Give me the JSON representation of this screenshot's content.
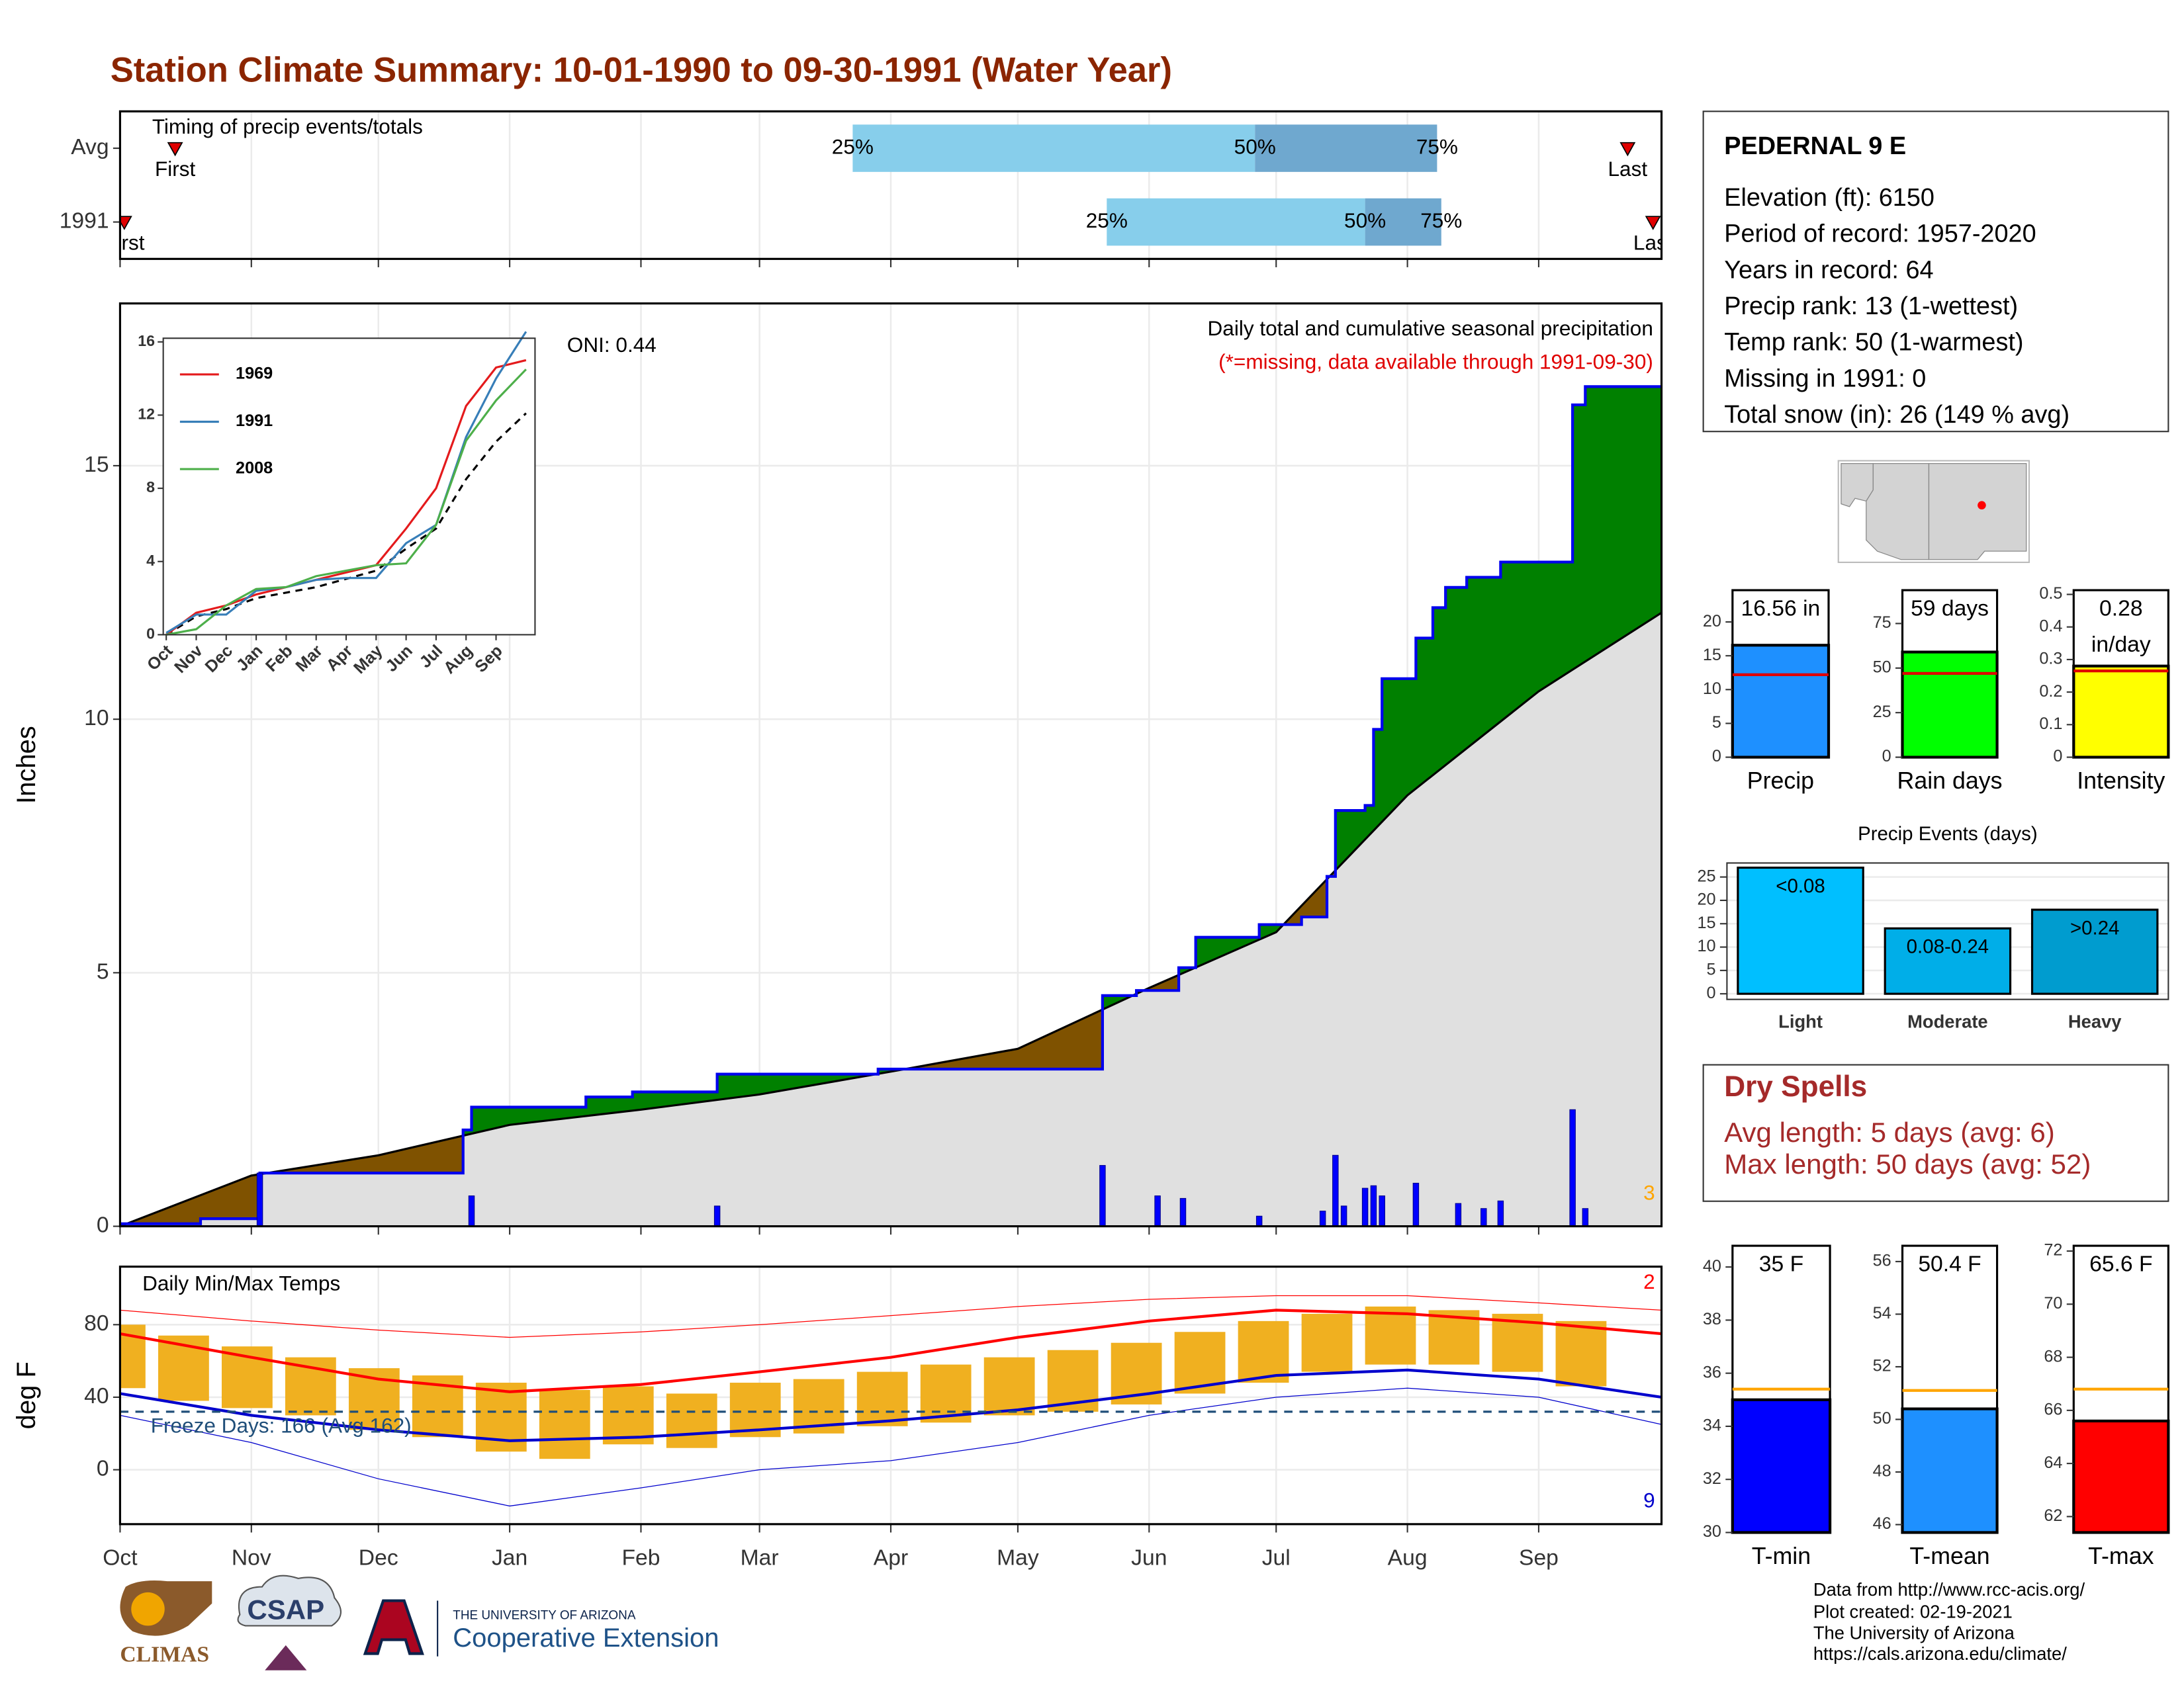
{
  "title": "Station Climate Summary: 10-01-1990 to 09-30-1991 (Water Year)",
  "chart_data": [
    {
      "type": "timing",
      "title": "Timing of precip events/totals",
      "categories": [
        "Avg",
        "1991"
      ],
      "rows": [
        {
          "first": 13,
          "q25": 173,
          "q50": 268,
          "q75": 311,
          "last": 356
        },
        {
          "first": 1,
          "q25": 233,
          "q50": 294,
          "q75": 312,
          "last": 362
        }
      ],
      "labels": {
        "first": "First",
        "last": "Last",
        "q25": "25%",
        "q50": "50%",
        "q75": "75%"
      },
      "colors": [
        "#87ceeb",
        "#6fa8cf"
      ],
      "marker_color": "#e00000",
      "xlim": [
        0,
        364
      ],
      "xticks": [
        0,
        31,
        61,
        92,
        123,
        151,
        182,
        212,
        243,
        273,
        304,
        335
      ],
      "grid": true
    },
    {
      "type": "cumulative",
      "title": "Daily total and cumulative seasonal precipitation",
      "subtitle": "(*=missing, data available through 1991-09-30)",
      "annotation": "ONI: 0.44",
      "corner_label": "3",
      "ylabel": "Inches",
      "series": [
        {
          "name": "1991",
          "color": "#0000ee",
          "x": [
            0,
            19,
            33,
            81,
            83,
            110,
            121,
            141,
            179,
            232,
            240,
            250,
            254,
            269,
            279,
            285,
            287,
            294,
            296,
            298,
            306,
            310,
            313,
            318,
            326,
            343,
            346,
            364
          ],
          "values": [
            0.05,
            0.15,
            1.05,
            1.9,
            2.35,
            2.55,
            2.65,
            3.0,
            3.1,
            4.55,
            4.65,
            5.1,
            5.7,
            5.95,
            6.1,
            6.9,
            8.2,
            8.3,
            9.8,
            10.8,
            11.6,
            12.2,
            12.6,
            12.8,
            13.1,
            16.2,
            16.56,
            16.56
          ]
        }
      ],
      "average": {
        "x": [
          0,
          31,
          61,
          92,
          123,
          151,
          182,
          212,
          243,
          273,
          304,
          335,
          364
        ],
        "values": [
          0,
          1.0,
          1.4,
          2.0,
          2.3,
          2.6,
          3.05,
          3.5,
          4.7,
          5.8,
          8.5,
          10.55,
          12.1
        ],
        "color": "#e0e0e0"
      },
      "above_color": "#008000",
      "below_color": "#7f5200",
      "daily": {
        "x": [
          33,
          83,
          141,
          232,
          245,
          251,
          269,
          284,
          287,
          289,
          294,
          296,
          298,
          306,
          316,
          322,
          326,
          343,
          346
        ],
        "values": [
          1.05,
          0.6,
          0.4,
          1.2,
          0.6,
          0.55,
          0.2,
          0.3,
          1.4,
          0.4,
          0.75,
          0.8,
          0.6,
          0.85,
          0.45,
          0.35,
          0.5,
          2.3,
          0.35
        ],
        "color": "#0000ff"
      },
      "xlim": [
        0,
        364
      ],
      "xticks": [
        0,
        31,
        61,
        92,
        123,
        151,
        182,
        212,
        243,
        273,
        304,
        335
      ],
      "ylim": [
        0,
        18.2
      ],
      "yticks": [
        0,
        5,
        10,
        15
      ],
      "grid": true
    },
    {
      "type": "line",
      "x": [
        0,
        1,
        2,
        3,
        4,
        5,
        6,
        7,
        8,
        9,
        10,
        11,
        12
      ],
      "series": [
        {
          "name": "1969",
          "color": "#e41a1c",
          "values": [
            0,
            1.2,
            1.6,
            2.2,
            2.6,
            3.0,
            3.4,
            3.8,
            5.8,
            8.0,
            12.5,
            14.6,
            15.0
          ]
        },
        {
          "name": "1991",
          "color": "#377eb8",
          "values": [
            0.1,
            1.1,
            1.1,
            2.4,
            2.6,
            3.0,
            3.1,
            3.1,
            5.0,
            6.0,
            10.8,
            14.0,
            16.56
          ]
        },
        {
          "name": "2008",
          "color": "#4daf4a",
          "values": [
            0,
            0.3,
            1.6,
            2.5,
            2.6,
            3.2,
            3.5,
            3.8,
            3.9,
            6.0,
            10.6,
            12.8,
            14.5
          ]
        }
      ],
      "average": {
        "values": [
          0,
          1.0,
          1.4,
          2.0,
          2.3,
          2.6,
          3.05,
          3.5,
          4.7,
          5.8,
          8.5,
          10.55,
          12.1
        ],
        "color": "#000000"
      },
      "xlim": [
        -0.1,
        12.3
      ],
      "xticks": [
        {
          "value": 0,
          "label": "Oct"
        },
        {
          "value": 1,
          "label": "Nov"
        },
        {
          "value": 2,
          "label": "Dec"
        },
        {
          "value": 3,
          "label": "Jan"
        },
        {
          "value": 4,
          "label": "Feb"
        },
        {
          "value": 5,
          "label": "Mar"
        },
        {
          "value": 6,
          "label": "Apr"
        },
        {
          "value": 7,
          "label": "May"
        },
        {
          "value": 8,
          "label": "Jun"
        },
        {
          "value": 9,
          "label": "Jul"
        },
        {
          "value": 10,
          "label": "Aug"
        },
        {
          "value": 11,
          "label": "Sep"
        }
      ],
      "ylim": [
        0,
        16.2
      ],
      "yticks": [
        0,
        4,
        8,
        12,
        16
      ]
    },
    {
      "type": "temperature",
      "title": "Daily Min/Max Temps",
      "ylabel": "deg F",
      "annotation": "Freeze Days: 166 (Avg 162)",
      "corner_labels": [
        "2",
        "9"
      ],
      "x": [
        0,
        15,
        30,
        45,
        60,
        75,
        90,
        105,
        120,
        135,
        150,
        165,
        180,
        195,
        210,
        225,
        240,
        255,
        270,
        285,
        300,
        315,
        330,
        345
      ],
      "high": [
        80,
        74,
        68,
        62,
        56,
        52,
        48,
        44,
        46,
        42,
        48,
        50,
        54,
        58,
        62,
        66,
        70,
        76,
        82,
        86,
        90,
        88,
        86,
        82
      ],
      "low": [
        45,
        38,
        34,
        30,
        22,
        18,
        10,
        6,
        14,
        12,
        18,
        20,
        24,
        26,
        30,
        32,
        36,
        42,
        48,
        54,
        58,
        58,
        54,
        46
      ],
      "bar_color": "#f0b020",
      "x_monthly": [
        0,
        31,
        61,
        92,
        123,
        151,
        182,
        212,
        243,
        273,
        304,
        335,
        364
      ],
      "normal_max": [
        75,
        62,
        50,
        43,
        47,
        54,
        62,
        73,
        82,
        88,
        86,
        81,
        75
      ],
      "normal_min": [
        42,
        30,
        22,
        16,
        18,
        22,
        27,
        33,
        42,
        52,
        55,
        50,
        40
      ],
      "extreme_max": [
        88,
        82,
        77,
        73,
        76,
        80,
        85,
        90,
        94,
        96,
        96,
        92,
        88
      ],
      "extreme_min": [
        30,
        15,
        -5,
        -20,
        -10,
        0,
        5,
        15,
        30,
        40,
        45,
        40,
        25
      ],
      "max_color": "#ff0000",
      "min_color": "#0000cc",
      "freeze_line": 32,
      "freeze_color": "#1f4e79",
      "xlim": [
        0,
        364
      ],
      "xticks": [
        {
          "value": 0,
          "label": "Oct"
        },
        {
          "value": 31,
          "label": "Nov"
        },
        {
          "value": 61,
          "label": "Dec"
        },
        {
          "value": 92,
          "label": "Jan"
        },
        {
          "value": 123,
          "label": "Feb"
        },
        {
          "value": 151,
          "label": "Mar"
        },
        {
          "value": 182,
          "label": "Apr"
        },
        {
          "value": 212,
          "label": "May"
        },
        {
          "value": 243,
          "label": "Jun"
        },
        {
          "value": 273,
          "label": "Jul"
        },
        {
          "value": 304,
          "label": "Aug"
        },
        {
          "value": 335,
          "label": "Sep"
        }
      ],
      "ylim": [
        -30,
        112
      ],
      "yticks": [
        0,
        40,
        80
      ],
      "grid": true
    },
    {
      "type": "box_bar",
      "category": "Precip",
      "value": 16.56,
      "value_labels": [
        "16.56 in"
      ],
      "average": 12.2,
      "color": "#1e90ff",
      "avg_color": "#e00000",
      "ylim": [
        0,
        24.7
      ],
      "yticks": [
        0,
        5,
        10,
        15,
        20
      ]
    },
    {
      "type": "box_bar",
      "category": "Rain days",
      "value": 59,
      "value_labels": [
        "59 days"
      ],
      "average": 47,
      "color": "#00ff00",
      "avg_color": "#e00000",
      "ylim": [
        0,
        93.7
      ],
      "yticks": [
        0,
        25,
        50,
        75
      ]
    },
    {
      "type": "box_bar",
      "category": "Intensity",
      "value": 0.28,
      "value_labels": [
        "0.28",
        "in/day"
      ],
      "average": 0.265,
      "color": "#ffff00",
      "avg_color": "#e00000",
      "ylim": [
        0,
        0.513
      ],
      "yticks": [
        0.0,
        0.1,
        0.2,
        0.3,
        0.4,
        0.5
      ]
    },
    {
      "type": "bar",
      "title": "Precip Events (days)",
      "categories": [
        "Light",
        "Moderate",
        "Heavy"
      ],
      "bin_labels": [
        "<0.08",
        "0.08-0.24",
        ">0.24"
      ],
      "values": [
        27,
        14,
        18
      ],
      "colors": [
        "#00bfff",
        "#00aee8",
        "#009ccf"
      ],
      "ylim": [
        -1.2,
        28
      ],
      "yticks": [
        0,
        5,
        10,
        15,
        20,
        25
      ],
      "grid": true
    },
    {
      "type": "box_bar",
      "category": "T-min",
      "value": 35,
      "value_labels": [
        "35 F"
      ],
      "average": 35.4,
      "color": "#0000ff",
      "avg_color": "#ffa500",
      "ylim": [
        30,
        40.8
      ],
      "yticks": [
        30,
        32,
        34,
        36,
        38,
        40
      ]
    },
    {
      "type": "box_bar",
      "category": "T-mean",
      "value": 50.4,
      "value_labels": [
        "50.4 F"
      ],
      "average": 51.1,
      "color": "#1e90ff",
      "avg_color": "#ffa500",
      "ylim": [
        45.7,
        56.6
      ],
      "yticks": [
        46,
        48,
        50,
        52,
        54,
        56
      ]
    },
    {
      "type": "box_bar",
      "category": "T-max",
      "value": 65.6,
      "value_labels": [
        "65.6 F"
      ],
      "average": 66.8,
      "color": "#ff0000",
      "avg_color": "#ffa500",
      "ylim": [
        61.4,
        72.2
      ],
      "yticks": [
        62,
        64,
        66,
        68,
        70,
        72
      ]
    }
  ],
  "station": {
    "name": "PEDERNAL 9 E",
    "lines": [
      "Elevation (ft): 6150",
      "Period of record: 1957-2020",
      "Years in record: 64",
      "Precip rank: 13 (1-wettest)",
      "Temp rank: 50 (1-warmest)",
      "Missing in 1991: 0",
      "Total snow (in): 26 (149 % avg)"
    ]
  },
  "dry_spells": {
    "title": "Dry Spells",
    "lines": [
      "Avg length: 5 days (avg: 6)",
      "Max length: 50 days (avg: 52)"
    ]
  },
  "logos": {
    "climas": "CLIMAS",
    "csap": "CSAP",
    "university": "THE UNIVERSITY OF ARIZONA",
    "extension": "Cooperative Extension"
  },
  "footer": [
    "Data from http://www.rcc-acis.org/",
    "Plot created: 02-19-2021",
    "The University of Arizona",
    "https://cals.arizona.edu/climate/"
  ]
}
